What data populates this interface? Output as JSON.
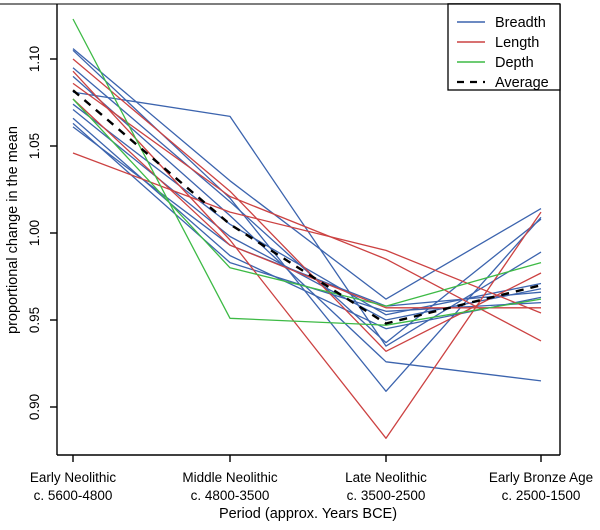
{
  "chart_data": {
    "type": "line",
    "title": "",
    "xlabel": "Period (approx. Years BCE)",
    "ylabel": "proportional change in the mean",
    "x_categories": [
      {
        "line1": "Early Neolithic",
        "line2": "c. 5600-4800"
      },
      {
        "line1": "Middle Neolithic",
        "line2": "c. 4800-3500"
      },
      {
        "line1": "Late Neolithic",
        "line2": "c. 3500-2500"
      },
      {
        "line1": "Early Bronze Age",
        "line2": "c. 2500-1500"
      }
    ],
    "y_ticks": [
      "0.90",
      "0.95",
      "1.00",
      "1.05",
      "1.10"
    ],
    "y_tick_values": [
      0.9,
      0.95,
      1.0,
      1.05,
      1.1
    ],
    "ylim": [
      0.873,
      1.131
    ],
    "grid": false,
    "legend_position": "top-right",
    "colors": {
      "breadth": "#3c64ae",
      "length": "#cc4242",
      "depth": "#3dba45",
      "average": "#000000",
      "box_top": "#7e7e7e",
      "axis": "#000000"
    },
    "legend": [
      {
        "label": "Breadth",
        "color": "#3c64ae",
        "dashed": false
      },
      {
        "label": "Length",
        "color": "#cc4242",
        "dashed": false
      },
      {
        "label": "Depth",
        "color": "#3dba45",
        "dashed": false
      },
      {
        "label": "Average",
        "color": "#000000",
        "dashed": true
      }
    ],
    "series": [
      {
        "id": "breadth-1",
        "group": "Breadth",
        "color": "#3c64ae",
        "values": [
          1.106,
          1.03,
          0.962,
          1.014
        ]
      },
      {
        "id": "breadth-2",
        "group": "Breadth",
        "color": "#3c64ae",
        "values": [
          1.105,
          1.02,
          0.909,
          1.009
        ]
      },
      {
        "id": "breadth-3",
        "group": "Breadth",
        "color": "#3c64ae",
        "values": [
          1.095,
          1.018,
          0.937,
          1.008
        ]
      },
      {
        "id": "breadth-4",
        "group": "Breadth",
        "color": "#3c64ae",
        "values": [
          1.09,
          1.01,
          0.926,
          0.915
        ]
      },
      {
        "id": "breadth-5",
        "group": "Breadth",
        "color": "#3c64ae",
        "values": [
          1.081,
          1.067,
          0.935,
          0.989
        ]
      },
      {
        "id": "breadth-6",
        "group": "Breadth",
        "color": "#3c64ae",
        "values": [
          1.074,
          1.005,
          0.953,
          0.971
        ]
      },
      {
        "id": "breadth-7",
        "group": "Breadth",
        "color": "#3c64ae",
        "values": [
          1.071,
          0.998,
          0.95,
          0.968
        ]
      },
      {
        "id": "breadth-8",
        "group": "Breadth",
        "color": "#3c64ae",
        "values": [
          1.066,
          0.987,
          0.945,
          0.963
        ]
      },
      {
        "id": "breadth-9",
        "group": "Breadth",
        "color": "#3c64ae",
        "values": [
          1.063,
          0.983,
          0.955,
          0.96
        ]
      },
      {
        "id": "breadth-10",
        "group": "Breadth",
        "color": "#3c64ae",
        "values": [
          1.061,
          0.993,
          0.958,
          0.966
        ]
      },
      {
        "id": "length-1",
        "group": "Length",
        "color": "#cc4242",
        "values": [
          1.1,
          1.024,
          0.932,
          0.977
        ]
      },
      {
        "id": "length-2",
        "group": "Length",
        "color": "#cc4242",
        "values": [
          1.093,
          0.996,
          0.882,
          1.012
        ]
      },
      {
        "id": "length-3",
        "group": "Length",
        "color": "#cc4242",
        "values": [
          1.086,
          1.021,
          0.985,
          0.938
        ]
      },
      {
        "id": "length-4",
        "group": "Length",
        "color": "#cc4242",
        "values": [
          1.077,
          0.993,
          0.957,
          0.957
        ]
      },
      {
        "id": "length-5",
        "group": "Length",
        "color": "#cc4242",
        "values": [
          1.046,
          1.012,
          0.99,
          0.954
        ]
      },
      {
        "id": "depth-1",
        "group": "Depth",
        "color": "#3dba45",
        "values": [
          1.123,
          0.951,
          0.947,
          0.962
        ]
      },
      {
        "id": "depth-2",
        "group": "Depth",
        "color": "#3dba45",
        "values": [
          1.077,
          0.98,
          0.958,
          0.983
        ]
      }
    ],
    "average_series": {
      "id": "average",
      "label": "Average",
      "color": "#000000",
      "dashed": true,
      "values": [
        1.082,
        1.005,
        0.948,
        0.97
      ]
    }
  }
}
